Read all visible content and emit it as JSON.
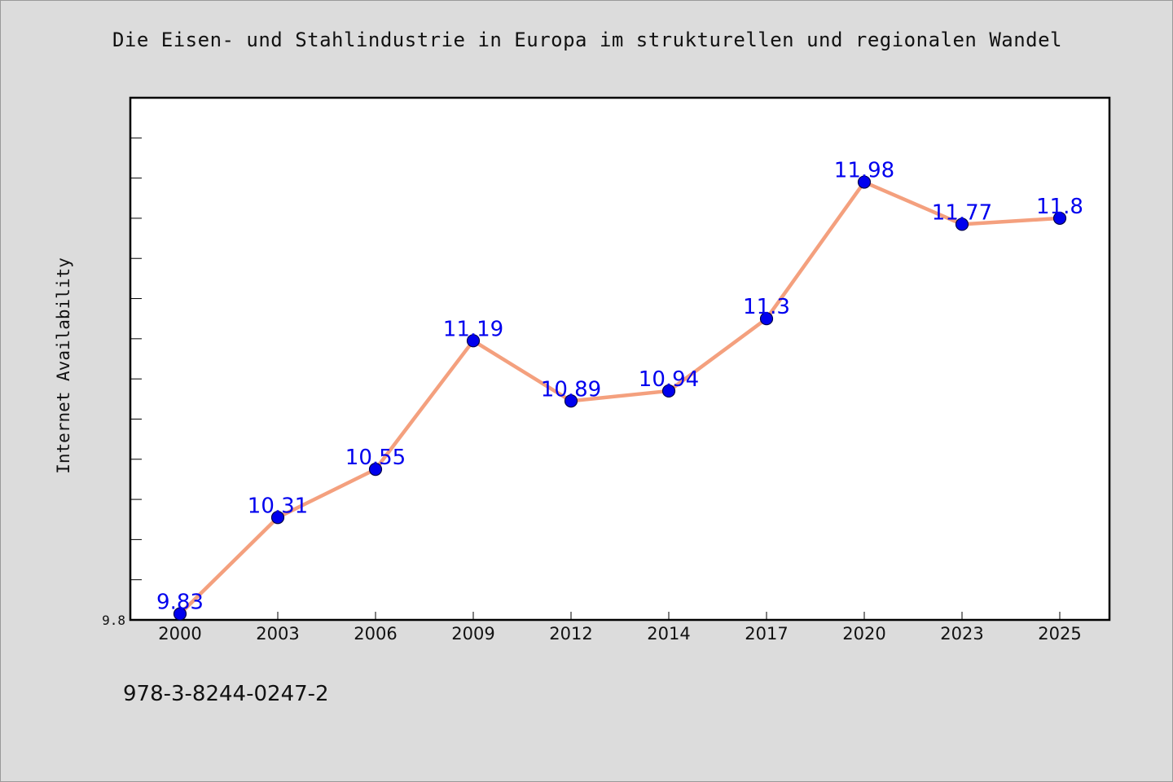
{
  "chart_data": {
    "type": "line",
    "title": "Die Eisen- und Stahlindustrie in Europa im strukturellen und regionalen Wandel",
    "ylabel": "Internet Availability",
    "xlabel": "",
    "categories": [
      "2000",
      "2003",
      "2006",
      "2009",
      "2012",
      "2014",
      "2017",
      "2020",
      "2023",
      "2025"
    ],
    "series": [
      {
        "values": [
          9.83,
          10.31,
          10.55,
          11.19,
          10.89,
          10.94,
          11.3,
          11.98,
          11.77,
          11.8
        ],
        "labels": [
          "9.83",
          "10.31",
          "10.55",
          "11.19",
          "10.89",
          "10.94",
          "11.3",
          "11.98",
          "11.77",
          "11.8"
        ]
      }
    ],
    "ylim": [
      9.8,
      12.4
    ],
    "y_tick_labels": [
      "9.8"
    ],
    "grid": false,
    "colors": {
      "line": "#f4a07e",
      "marker": "#0000ee",
      "marker_edge": "#00004a",
      "data_label": "#0000ee"
    }
  },
  "footer": {
    "isbn": "978-3-8244-0247-2"
  }
}
